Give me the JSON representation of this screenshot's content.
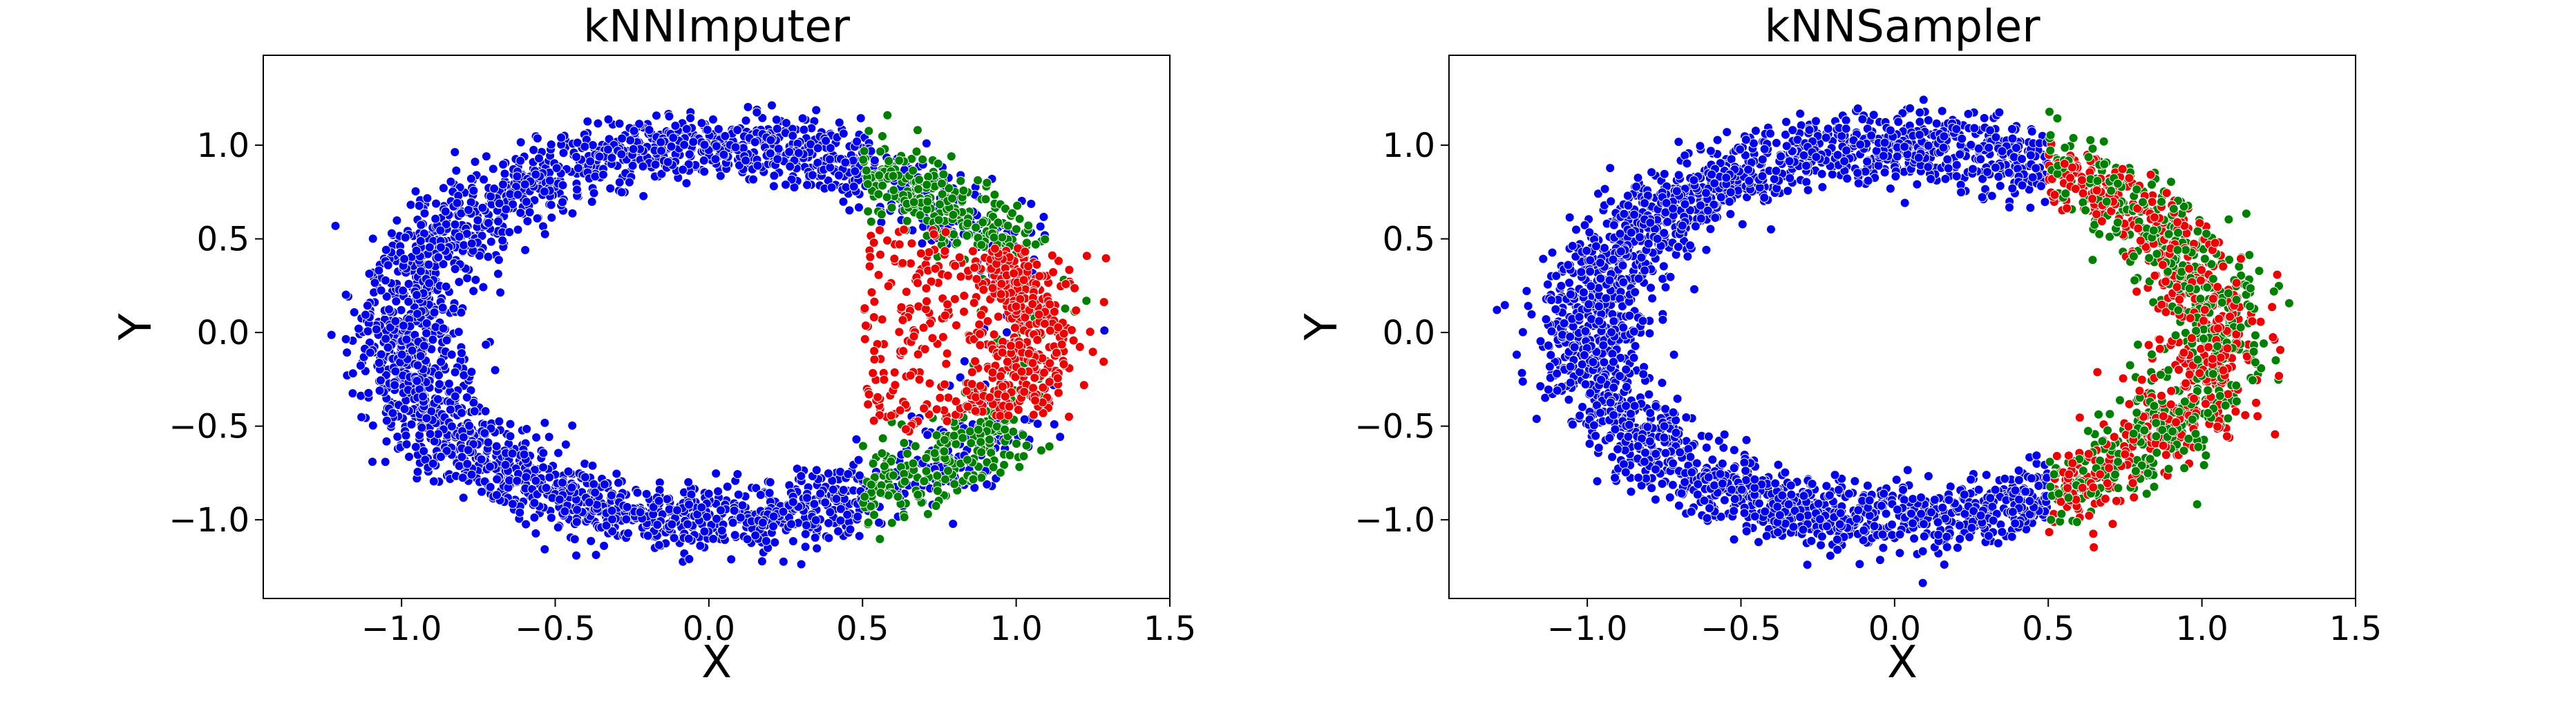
{
  "chart_data": [
    {
      "type": "scatter",
      "title": "kNNImputer",
      "xlabel": "X",
      "ylabel": "Y",
      "xlim": [
        -1.45,
        1.5
      ],
      "ylim": [
        -1.42,
        1.48
      ],
      "xticks": [
        -1.0,
        -0.5,
        0.0,
        0.5,
        1.0,
        1.5
      ],
      "xtick_labels": [
        "−1.0",
        "−0.5",
        "0.0",
        "0.5",
        "1.0",
        "1.5"
      ],
      "yticks": [
        -1.0,
        -0.5,
        0.0,
        0.5,
        1.0
      ],
      "ytick_labels": [
        "−1.0",
        "−0.5",
        "0.0",
        "0.5",
        "1.0"
      ],
      "grid": false,
      "legend": "none",
      "series": [
        {
          "color": "#0000ee",
          "marker": "circle",
          "region": "ring x in [-1.35, 0.5], plus scattered points on right arc",
          "x_range": [
            -1.35,
            1.38
          ],
          "y_range": [
            -1.3,
            1.35
          ]
        },
        {
          "color": "#008000",
          "marker": "circle",
          "region": "right arc, upper and lower lobes",
          "x_range": [
            0.5,
            1.2
          ],
          "y_range": [
            -1.18,
            1.12
          ]
        },
        {
          "color": "#ee0000",
          "marker": "circle",
          "region": "right arc, middle band plus points spread inside x 0.5-0.65",
          "x_range": [
            0.5,
            1.25
          ],
          "y_range": [
            -0.6,
            0.45
          ]
        }
      ]
    },
    {
      "type": "scatter",
      "title": "kNNSampler",
      "xlabel": "X",
      "ylabel": "Y",
      "xlim": [
        -1.45,
        1.5
      ],
      "ylim": [
        -1.42,
        1.48
      ],
      "xticks": [
        -1.0,
        -0.5,
        0.0,
        0.5,
        1.0,
        1.5
      ],
      "xtick_labels": [
        "−1.0",
        "−0.5",
        "0.0",
        "0.5",
        "1.0",
        "1.5"
      ],
      "yticks": [
        -1.0,
        -0.5,
        0.0,
        0.5,
        1.0
      ],
      "ytick_labels": [
        "−1.0",
        "−0.5",
        "0.0",
        "0.5",
        "1.0"
      ],
      "grid": false,
      "legend": "none",
      "series": [
        {
          "color": "#0000ee",
          "marker": "circle",
          "region": "ring x in [-1.35, 0.5]",
          "x_range": [
            -1.35,
            0.5
          ],
          "y_range": [
            -1.3,
            1.35
          ]
        },
        {
          "color": "#008000",
          "marker": "circle",
          "region": "right arc x >= 0.5",
          "x_range": [
            0.5,
            1.38
          ],
          "y_range": [
            -1.1,
            1.1
          ]
        },
        {
          "color": "#ee0000",
          "marker": "circle",
          "region": "right arc x >= 0.5",
          "x_range": [
            0.5,
            1.38
          ],
          "y_range": [
            -1.1,
            1.1
          ]
        }
      ]
    }
  ]
}
